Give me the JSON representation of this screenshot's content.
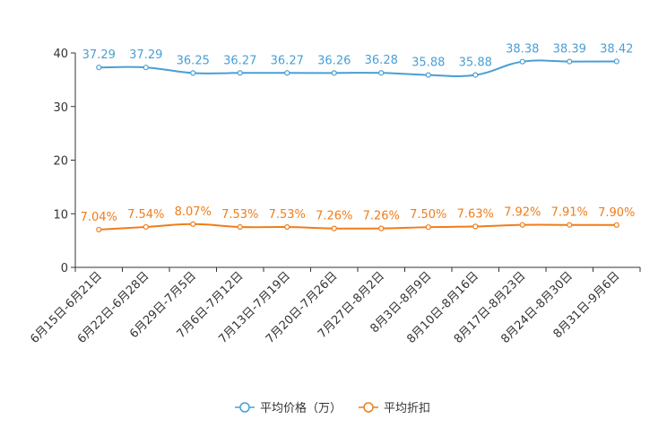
{
  "chart_data": {
    "type": "line",
    "title": "",
    "xlabel": "",
    "ylabel": "",
    "ylim": [
      0,
      40
    ],
    "yticks": [
      0,
      10,
      20,
      30,
      40
    ],
    "grid": false,
    "legend_position": "bottom-center",
    "categories": [
      "6月15日-6月21日",
      "6月22日-6月28日",
      "6月29日-7月5日",
      "7月6日-7月12日",
      "7月13日-7月19日",
      "7月20日-7月26日",
      "7月27日-8月2日",
      "8月3日-8月9日",
      "8月10日-8月16日",
      "8月17日-8月23日",
      "8月24日-8月30日",
      "8月31日-9月6日"
    ],
    "series": [
      {
        "name": "平均价格（万）",
        "color": "#4a9fd4",
        "values": [
          37.29,
          37.29,
          36.25,
          36.27,
          36.27,
          36.26,
          36.28,
          35.88,
          35.88,
          38.38,
          38.39,
          38.42
        ],
        "labels": [
          "37.29",
          "37.29",
          "36.25",
          "36.27",
          "36.27",
          "36.26",
          "36.28",
          "35.88",
          "35.88",
          "38.38",
          "38.39",
          "38.42"
        ]
      },
      {
        "name": "平均折扣",
        "color": "#f07d1a",
        "values": [
          7.04,
          7.54,
          8.07,
          7.53,
          7.53,
          7.26,
          7.26,
          7.5,
          7.63,
          7.92,
          7.91,
          7.9
        ],
        "labels": [
          "7.04%",
          "7.54%",
          "8.07%",
          "7.53%",
          "7.53%",
          "7.26%",
          "7.26%",
          "7.50%",
          "7.63%",
          "7.92%",
          "7.91%",
          "7.90%"
        ]
      }
    ]
  }
}
